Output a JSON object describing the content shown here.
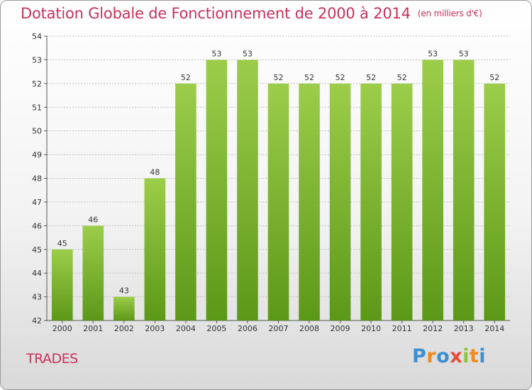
{
  "header": {
    "title": "Dotation Globale de Fonctionnement de 2000 à 2014",
    "unit": "(en milliers d'€)"
  },
  "footer": {
    "commune": "TRADES",
    "logo_text": "Proxiti"
  },
  "colors": {
    "title": "#c8325c",
    "bar_top": "#9ccd4a",
    "bar_bottom": "#5c9818",
    "gridline": "#bfbfbf"
  },
  "chart_data": {
    "type": "bar",
    "title": "Dotation Globale de Fonctionnement de 2000 à 2014",
    "subtitle": "(en milliers d'€)",
    "xlabel": "",
    "ylabel": "",
    "categories": [
      "2000",
      "2001",
      "2002",
      "2003",
      "2004",
      "2005",
      "2006",
      "2007",
      "2008",
      "2009",
      "2010",
      "2011",
      "2012",
      "2013",
      "2014"
    ],
    "values": [
      45,
      46,
      43,
      48,
      52,
      53,
      53,
      52,
      52,
      52,
      52,
      52,
      53,
      53,
      52
    ],
    "ylim": [
      42,
      54
    ],
    "yticks": [
      42,
      43,
      44,
      45,
      46,
      47,
      48,
      49,
      50,
      51,
      52,
      53,
      54
    ],
    "grid": true,
    "legend": "none"
  }
}
